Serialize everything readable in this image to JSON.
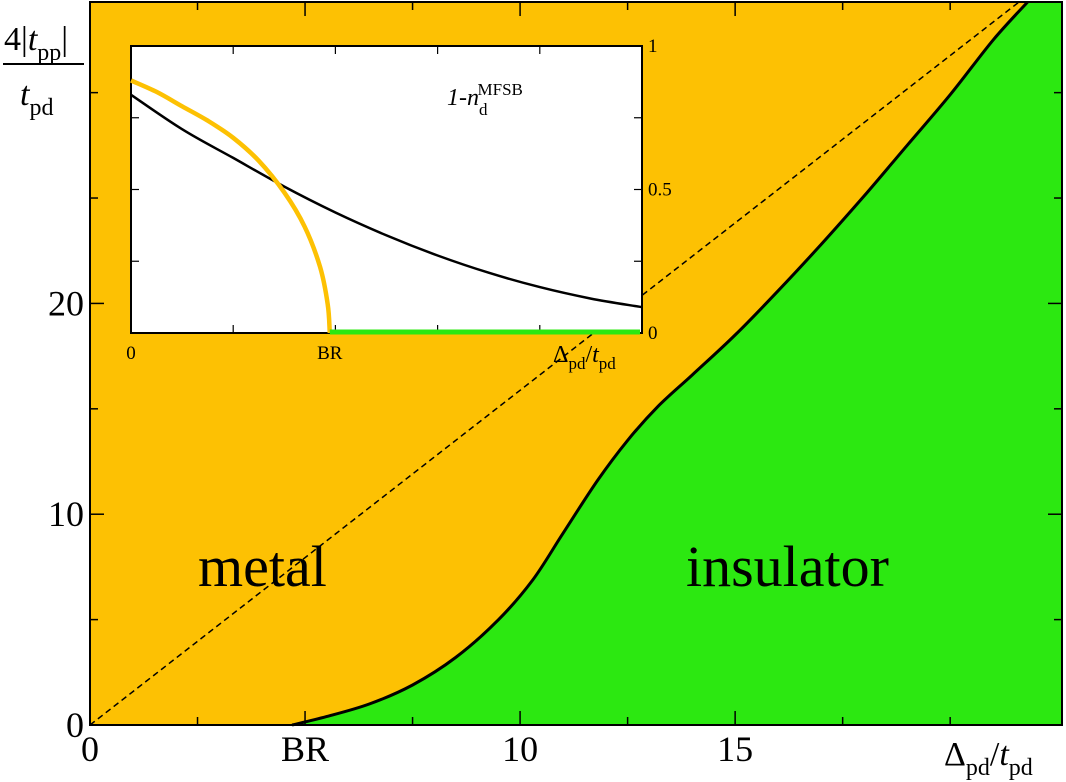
{
  "colors": {
    "metal": "#fdc103",
    "insulator": "#2ce811",
    "boundary": "#000000",
    "inset_background": "#ffffff",
    "inset_metal_curve": "#fdc103",
    "inset_insulator_line": "#2ce811"
  },
  "chart_data": [
    {
      "type": "area",
      "xlabel": "Δpd/tpd",
      "ylabel": "4|tpp|/tpd",
      "xlim": [
        0,
        22.6
      ],
      "ylim": [
        0,
        34.3
      ],
      "x_tick_labels": [
        {
          "x": 0,
          "label": "0"
        },
        {
          "x": 5,
          "label": "BR"
        },
        {
          "x": 10,
          "label": "10"
        },
        {
          "x": 15,
          "label": "15"
        }
      ],
      "y_tick_labels": [
        {
          "y": 0,
          "label": "0"
        },
        {
          "y": 10,
          "label": "10"
        },
        {
          "y": 20,
          "label": "20"
        }
      ],
      "x_minor_ticks": [
        2.5,
        7.5,
        12.5,
        17.5,
        20
      ],
      "y_minor_ticks": [
        5,
        15,
        25,
        30
      ],
      "regions": [
        {
          "name": "metal",
          "label": "metal"
        },
        {
          "name": "insulator",
          "label": "insulator"
        }
      ],
      "boundary_curve": {
        "x": [
          4.7,
          5.5,
          6.5,
          7.5,
          8.5,
          9.5,
          10.3,
          11.0,
          11.8,
          12.5,
          13.2,
          14.0,
          15.0,
          16.0,
          17.0,
          18.0,
          19.0,
          20.0,
          21.0,
          21.8
        ],
        "y": [
          0.0,
          0.4,
          1.0,
          1.9,
          3.2,
          5.0,
          6.9,
          9.1,
          11.6,
          13.5,
          15.1,
          16.6,
          18.5,
          20.6,
          22.8,
          25.1,
          27.5,
          29.9,
          32.5,
          34.3
        ]
      },
      "dashed_line": {
        "x": [
          0,
          21.6
        ],
        "y": [
          0,
          34.3
        ]
      }
    },
    {
      "type": "line",
      "ylabel": "1-nd^MFSB",
      "xlabel": "Δpd/tpd",
      "xlim": [
        0,
        1
      ],
      "ylim": [
        0,
        1
      ],
      "x_tick_labels": [
        {
          "x": 0,
          "label": "0"
        },
        {
          "x": 0.389,
          "label": "BR"
        }
      ],
      "y_tick_labels": [
        {
          "y": 0,
          "label": "0"
        },
        {
          "y": 0.5,
          "label": "0.5"
        },
        {
          "y": 1,
          "label": "1"
        }
      ],
      "series": [
        {
          "x": [
            0,
            0.1,
            0.2,
            0.3,
            0.4,
            0.5,
            0.6,
            0.7,
            0.8,
            0.9,
            1.0
          ],
          "y": [
            0.83,
            0.71,
            0.61,
            0.51,
            0.42,
            0.34,
            0.27,
            0.21,
            0.16,
            0.12,
            0.09
          ]
        },
        {
          "x": [
            0,
            0.05,
            0.1,
            0.15,
            0.2,
            0.25,
            0.3,
            0.34,
            0.37,
            0.385,
            0.389
          ],
          "y": [
            0.88,
            0.84,
            0.79,
            0.74,
            0.68,
            0.6,
            0.49,
            0.37,
            0.23,
            0.1,
            0.0
          ]
        },
        {
          "x": [
            0.389,
            1.0
          ],
          "y": [
            0.0,
            0.0
          ]
        }
      ]
    }
  ]
}
